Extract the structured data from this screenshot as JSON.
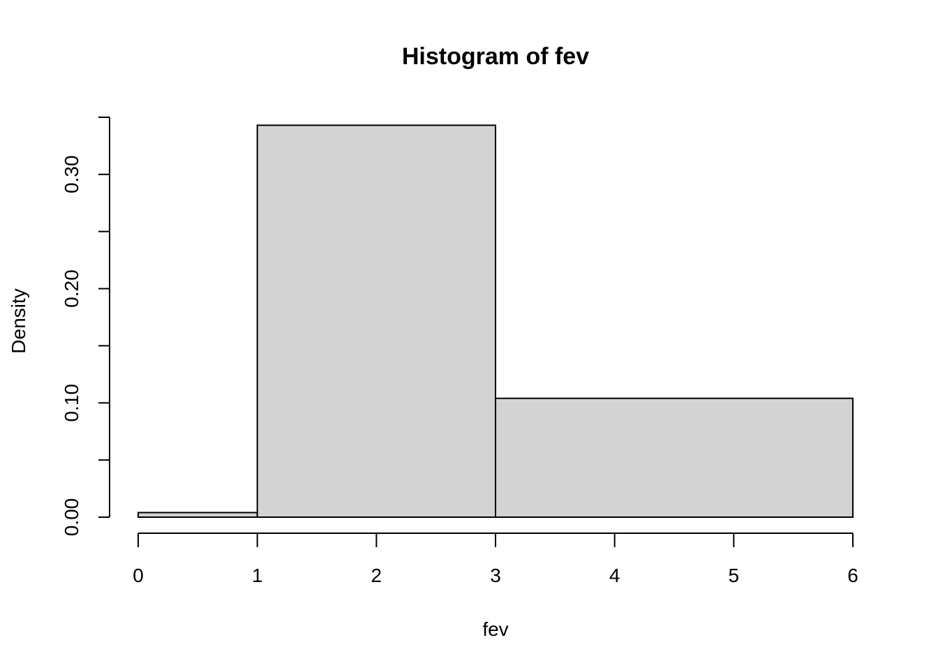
{
  "chart_data": {
    "type": "bar",
    "title": "Histogram of fev",
    "xlabel": "fev",
    "ylabel": "Density",
    "bins": [
      {
        "x0": 0,
        "x1": 1,
        "density": 0.004
      },
      {
        "x0": 1,
        "x1": 3,
        "density": 0.343
      },
      {
        "x0": 3,
        "x1": 6,
        "density": 0.104
      }
    ],
    "xlim": [
      0,
      6
    ],
    "ylim": [
      0,
      0.35
    ],
    "x_ticks": [
      0,
      1,
      2,
      3,
      4,
      5,
      6
    ],
    "y_ticks": [
      0.0,
      0.05,
      0.1,
      0.15,
      0.2,
      0.25,
      0.3,
      0.35
    ],
    "y_tick_labels": [
      "0.00",
      "",
      "0.10",
      "",
      "0.20",
      "",
      "0.30",
      ""
    ],
    "bar_fill": "#d3d3d3",
    "bar_stroke": "#000000",
    "grid": false,
    "legend": "none"
  }
}
